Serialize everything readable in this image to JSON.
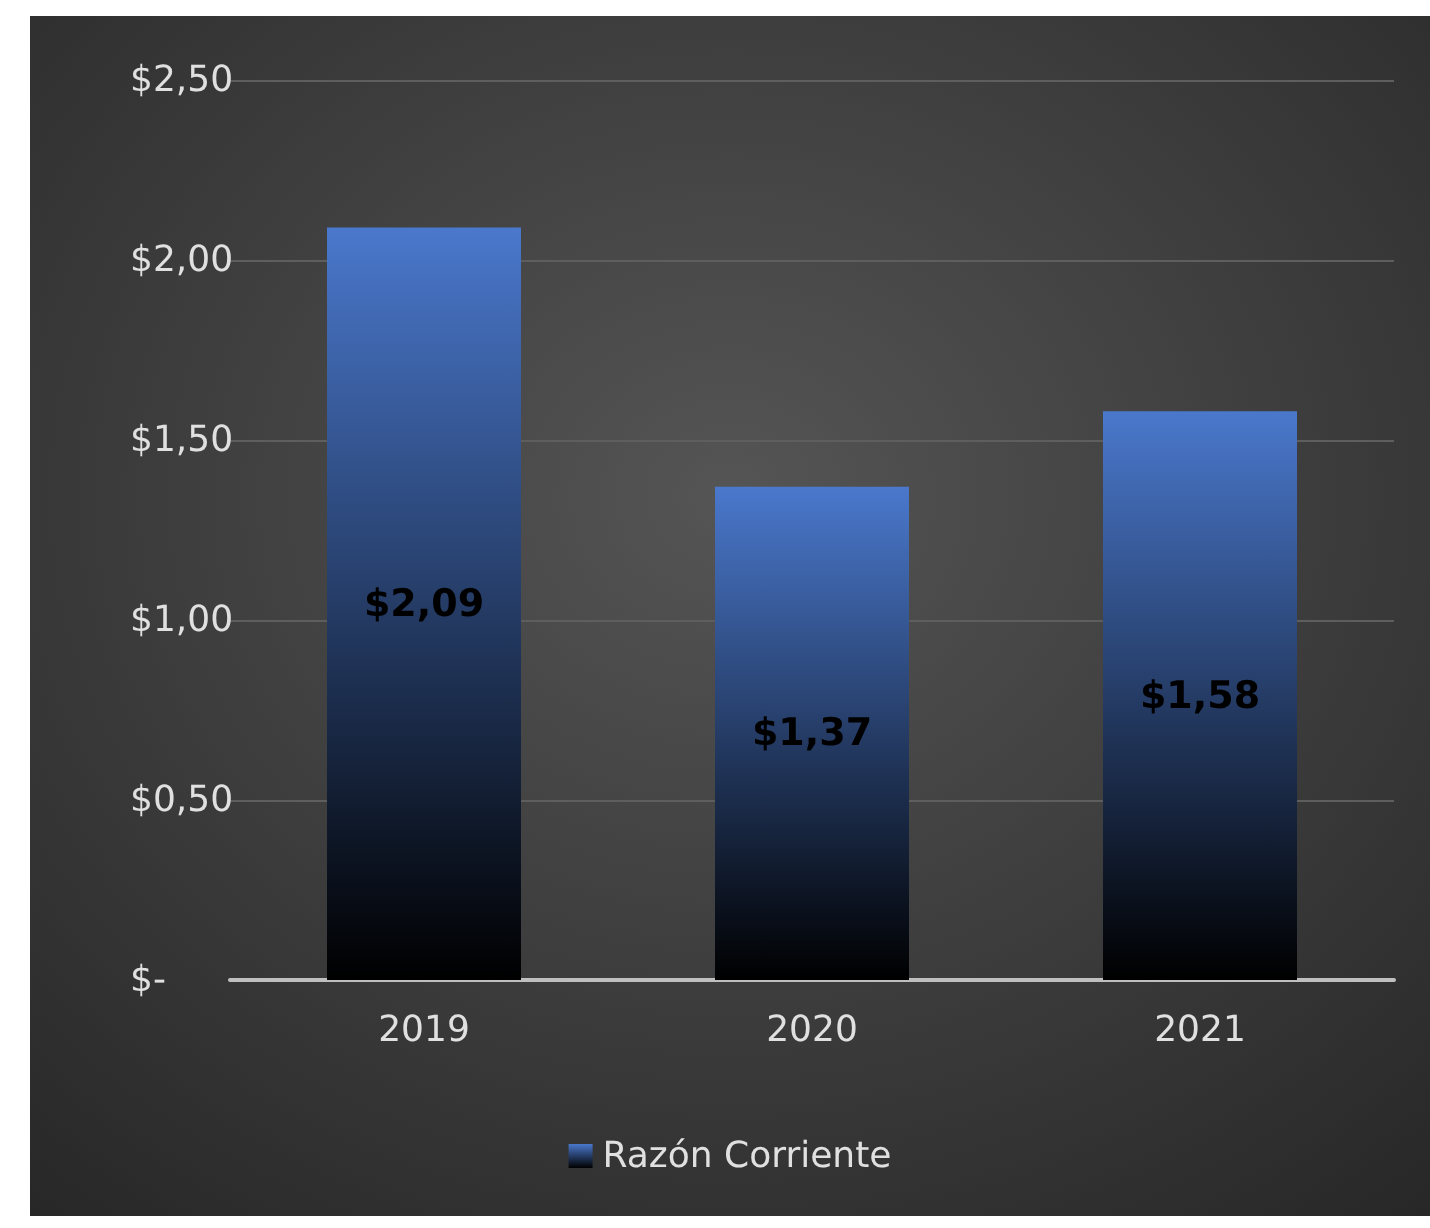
{
  "chart_data": {
    "type": "bar",
    "categories": [
      "2019",
      "2020",
      "2021"
    ],
    "series": [
      {
        "name": "Razón Corriente",
        "color": "#4a78cc",
        "values": [
          2.09,
          1.37,
          1.58
        ],
        "value_labels": [
          "$2,09",
          "$1,37",
          "$1,58"
        ]
      }
    ],
    "ylim": [
      0,
      2.5
    ],
    "yticks": [
      {
        "value": 0,
        "label": "$-"
      },
      {
        "value": 0.5,
        "label": "$0,50"
      },
      {
        "value": 1,
        "label": "$1,00"
      },
      {
        "value": 1.5,
        "label": "$1,50"
      },
      {
        "value": 2,
        "label": "$2,00"
      },
      {
        "value": 2.5,
        "label": "$2,50"
      }
    ],
    "grid": true,
    "legend": "bottom"
  }
}
